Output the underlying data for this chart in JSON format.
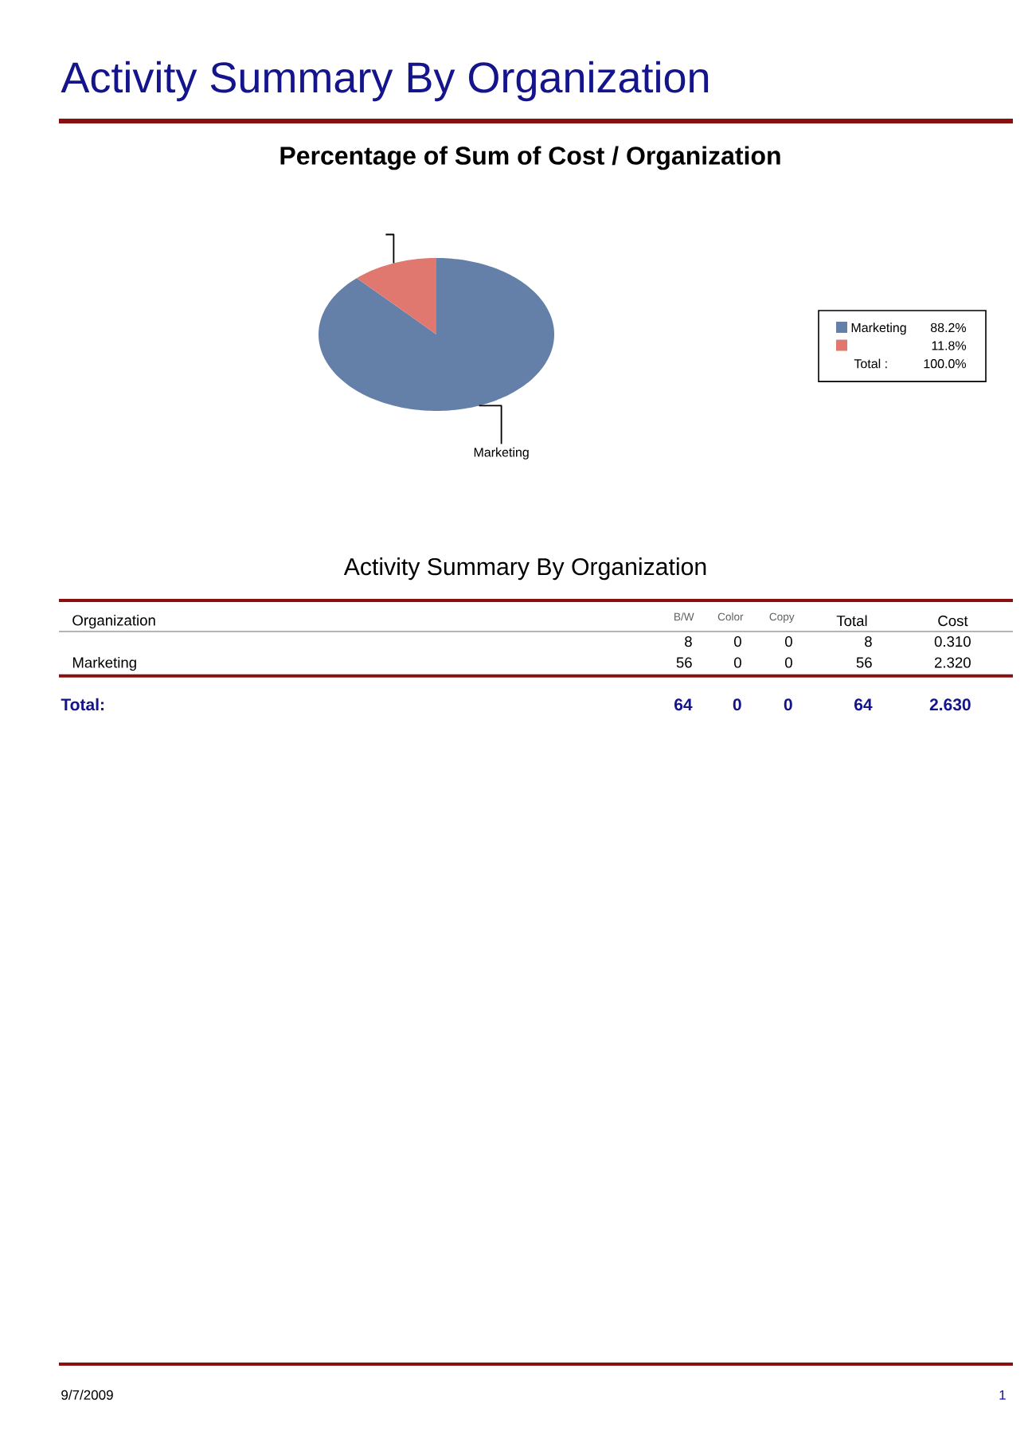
{
  "chart_data": [
    {
      "type": "pie",
      "title": "Activity Summary By Organization",
      "subtitle": "Percentage of Sum of Cost / Organization",
      "categories": [
        "Marketing",
        null
      ],
      "values": [
        88.2,
        11.8
      ],
      "colors": [
        "#6480a8",
        "#e07870"
      ],
      "legend": "right",
      "annotations": [
        "88.2%",
        "11.8%",
        "Total :",
        "100.0%"
      ]
    },
    {
      "type": "other",
      "title": "Activity Summary By Organization",
      "annotations": [
        "Organization",
        "B/W",
        "Color",
        "Copy",
        "Total",
        "Cost",
        "8",
        "0",
        "0",
        "8",
        "0.310",
        "Marketing",
        "56",
        "0",
        "0",
        "56",
        "2.320",
        "Total:",
        "64",
        "0",
        "0",
        "64",
        "2.630",
        "9/7/2009",
        "1"
      ]
    }
  ]
}
